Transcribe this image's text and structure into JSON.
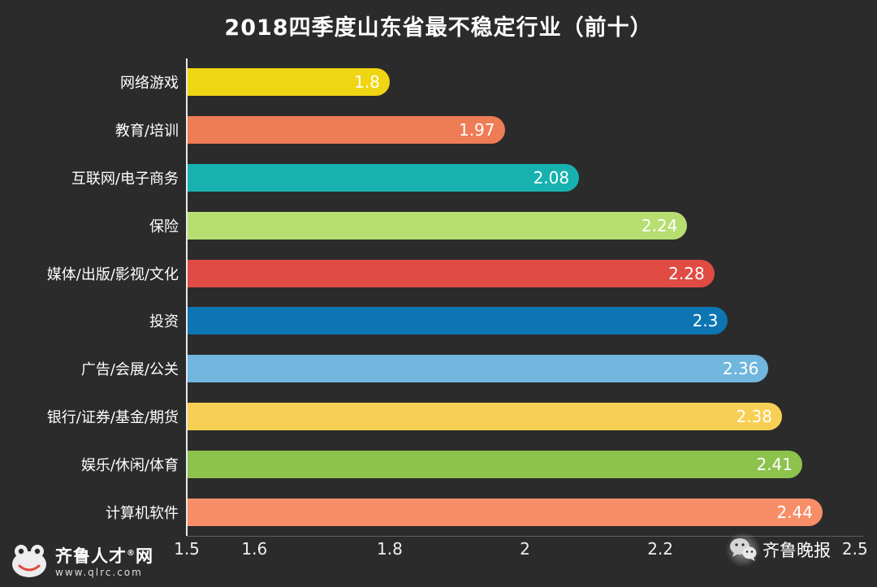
{
  "title": "2018四季度山东省最不稳定行业（前十）",
  "chart_data": {
    "type": "bar",
    "orientation": "horizontal",
    "title": "2018四季度山东省最不稳定行业（前十）",
    "categories": [
      "网络游戏",
      "教育/培训",
      "互联网/电子商务",
      "保险",
      "媒体/出版/影视/文化",
      "投资",
      "广告/会展/公关",
      "银行/证券/基金/期货",
      "娱乐/休闲/体育",
      "计算机软件"
    ],
    "values": [
      1.8,
      1.97,
      2.08,
      2.24,
      2.28,
      2.3,
      2.36,
      2.38,
      2.41,
      2.44
    ],
    "value_labels": [
      "1.8",
      "1.97",
      "2.08",
      "2.24",
      "2.28",
      "2.3",
      "2.36",
      "2.38",
      "2.41",
      "2.44"
    ],
    "bar_colors": [
      "#f0d513",
      "#ee7c55",
      "#17b2af",
      "#b7de71",
      "#e04b43",
      "#0c75b2",
      "#70b6dd",
      "#f7cf55",
      "#8dc24d",
      "#f78e68"
    ],
    "xlim": [
      1.5,
      2.5
    ],
    "x_tick_labels": [
      "1.5",
      "1.6",
      "1.8",
      "2",
      "2.2",
      "2.5"
    ],
    "x_tick_values": [
      1.5,
      1.6,
      1.8,
      2,
      2.2,
      2.5
    ],
    "grid": false,
    "legend": false,
    "background_color": "#2b2b2b",
    "text_color": "#ffffff"
  },
  "footer_logo": {
    "brand_left": "齐鲁人才",
    "registered_mark": "®",
    "brand_right": "网",
    "url": "www.qlrc.com"
  },
  "watermark": {
    "text": "齐鲁晚报",
    "icon": "wechat-icon"
  }
}
